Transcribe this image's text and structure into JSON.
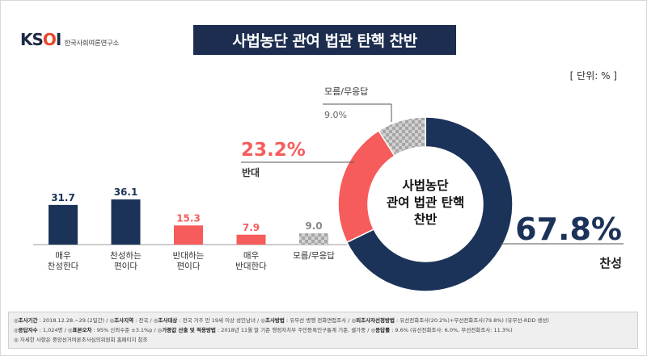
{
  "logo": {
    "mark_main": "KS",
    "mark_o": "O",
    "mark_end": "I",
    "sub": "한국사회여론연구소"
  },
  "title": "사법농단 관여 법관 탄핵 찬반",
  "unit": "[ 단위: % ]",
  "colors": {
    "navy": "#1c3359",
    "red": "#f65c5c",
    "gray": "#b9b9b9",
    "title_bg": "#1c2d4f"
  },
  "chart_data": [
    {
      "type": "bar",
      "categories": [
        "매우\n찬성한다",
        "찬성하는\n편이다",
        "반대하는\n편이다",
        "매우\n반대한다",
        "모름/무응답"
      ],
      "values": [
        31.7,
        36.1,
        15.3,
        7.9,
        9.0
      ],
      "value_labels": [
        "31.7",
        "36.1",
        "15.3",
        "7.9",
        "9.0"
      ],
      "bar_colors": [
        "navy",
        "navy",
        "red",
        "red",
        "gray"
      ],
      "ylim": [
        0,
        40
      ]
    },
    {
      "type": "pie",
      "donut": true,
      "center_label": [
        "사법농단",
        "관여 법관 탄핵",
        "찬반"
      ],
      "slices": [
        {
          "name": "찬성",
          "value": 67.8,
          "label": "67.8%",
          "color": "navy"
        },
        {
          "name": "반대",
          "value": 23.2,
          "label": "23.2%",
          "color": "red"
        },
        {
          "name": "모름/무응답",
          "value": 9.0,
          "label": "9.0%",
          "color": "gray"
        }
      ]
    }
  ],
  "footer": {
    "line1": [
      {
        "k": "조사기간",
        "v": " : 2018.12.28.~29.(2일간) / "
      },
      {
        "k": "조사지역",
        "v": " : 전국 / "
      },
      {
        "k": "조사대상",
        "v": " : 전국 거주 만 19세 이상 성인남녀 / "
      },
      {
        "k": "조사방법",
        "v": " : 유무선 병행 전화면접조사 / "
      },
      {
        "k": "피조사자선정방법",
        "v": " : 유선전화조사(20.2%)+무선전화조사(79.8%) (유무선-RDD 생성)"
      }
    ],
    "line2": [
      {
        "k": "응답자수",
        "v": " : 1,024명 / "
      },
      {
        "k": "표본오차",
        "v": " : 95% 신뢰수준 ±3.1%p / "
      },
      {
        "k": "가중값 산출 및 적용방법",
        "v": " : 2018년 11월 말 기준 행정자치부 주민등록인구통계 기준, 셀가중 / "
      },
      {
        "k": "응답률",
        "v": " : 9.6% (유선전화조사: 6.0%, 무선전화조사: 11.3%)"
      }
    ],
    "line3": "자세한 사항은 중앙선거여론조사심의위원회 홈페이지 참조"
  }
}
